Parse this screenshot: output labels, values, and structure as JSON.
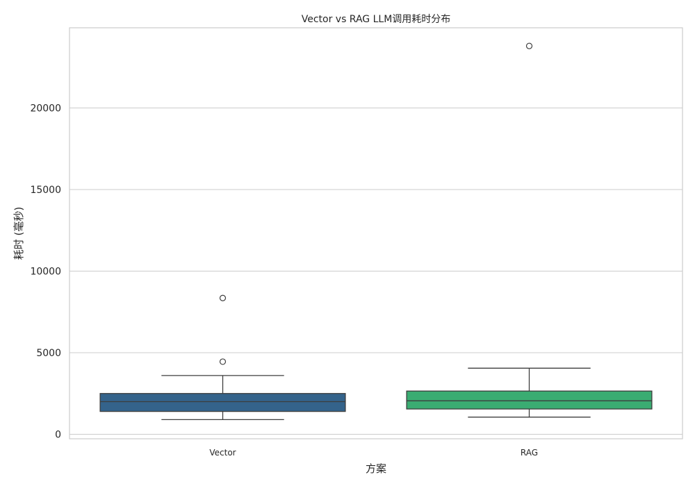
{
  "chart_data": {
    "type": "box",
    "title": "Vector vs RAG LLM调用耗时分布",
    "xlabel": "方案",
    "ylabel": "耗时 (毫秒)",
    "ylim": [
      -250,
      25000
    ],
    "yticks": [
      0,
      5000,
      10000,
      15000,
      20000
    ],
    "ytick_labels": [
      "0",
      "5000",
      "10000",
      "15000",
      "20000"
    ],
    "grid": true,
    "categories": [
      "Vector",
      "RAG"
    ],
    "series": [
      {
        "category": "Vector",
        "whisker_low": 900,
        "q1": 1400,
        "median": 2000,
        "q3": 2500,
        "whisker_high": 3600,
        "outliers": [
          4450,
          8350
        ],
        "color": "#34638b"
      },
      {
        "category": "RAG",
        "whisker_low": 1050,
        "q1": 1550,
        "median": 2050,
        "q3": 2650,
        "whisker_high": 4050,
        "outliers": [
          23800
        ],
        "color": "#3aac72"
      }
    ],
    "colors": {
      "grid": "#cccccc",
      "spine": "#cccccc",
      "line": "#3d3d3d"
    }
  }
}
